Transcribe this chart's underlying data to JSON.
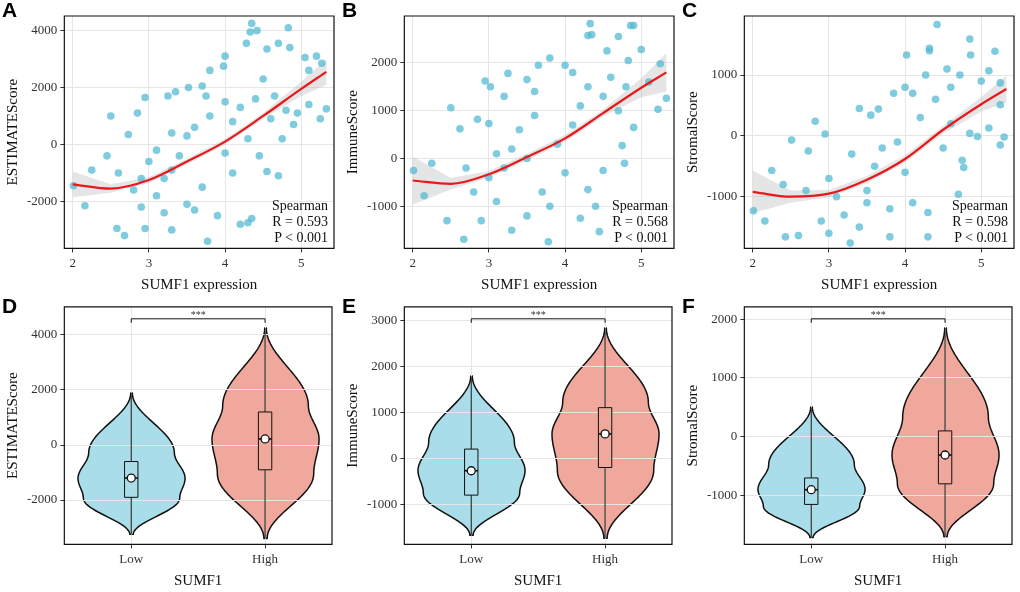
{
  "chart_data": [
    {
      "type": "scatter",
      "title": "A",
      "xlabel": "SUMF1 expression",
      "ylabel": "ESTIMATEScore",
      "xlim": [
        1.89,
        5.43
      ],
      "xticks": [
        2,
        3,
        4,
        5
      ],
      "ylim": [
        -3650,
        4510
      ],
      "yticks": [
        -2000,
        0,
        2000,
        4000
      ],
      "grid": true,
      "annotations": [
        "Spearman",
        "R = 0.593",
        "P < 0.001"
      ],
      "series": [
        {
          "type": "scatter",
          "marker": "circle",
          "color": "#4fb9d3",
          "x": [
            4.35,
            4.33,
            4.42,
            4.83,
            4.28,
            4.7,
            4.55,
            4.85,
            5.2,
            5.05,
            4.0,
            3.8,
            3.98,
            5.27,
            5.1,
            5.33,
            5.25,
            5.1,
            4.95,
            4.9,
            4.75,
            4.7,
            4.55,
            4.35,
            4.3,
            4.2,
            3.77,
            3.3,
            2.95,
            2.68,
            2.58,
            2.16,
            2.01,
            2.25,
            2.5,
            2.85,
            2.95,
            3.25,
            3.35,
            3.52,
            3.7,
            3.75,
            2.73,
            2.45,
            2.6,
            2.8,
            2.9,
            3.1,
            3.2,
            3.0,
            3.1,
            3.3,
            3.4,
            3.5,
            3.6,
            3.3,
            3.7,
            3.9,
            3.6,
            4.0,
            4.1,
            4.2,
            4.4,
            4.5,
            4.6,
            4.3,
            4.0,
            3.8,
            3.5,
            3.2,
            2.9,
            4.65,
            4.8,
            4.1,
            4.45
          ],
          "values": [
            4250,
            3950,
            4000,
            4100,
            3550,
            3550,
            3350,
            3400,
            3100,
            3050,
            3100,
            2600,
            2750,
            2850,
            2600,
            1250,
            900,
            1400,
            1100,
            700,
            200,
            -1100,
            -950,
            -2600,
            -2750,
            -2800,
            -3400,
            -3000,
            -2950,
            -3200,
            -2950,
            -2150,
            -1450,
            -900,
            1000,
            1100,
            1650,
            1700,
            1850,
            2000,
            2050,
            1700,
            350,
            -400,
            -1000,
            -1600,
            -2200,
            -1800,
            -1200,
            -600,
            -200,
            -900,
            -400,
            300,
            600,
            400,
            -1500,
            -2500,
            -2300,
            -300,
            800,
            1300,
            1600,
            2300,
            900,
            200,
            1500,
            1000,
            -2100,
            -2400,
            -1200,
            1700,
            1200,
            -1000,
            -400
          ]
        },
        {
          "type": "line",
          "color": "#e8191c",
          "x": [
            2.0,
            2.5,
            3.0,
            3.5,
            4.0,
            4.5,
            5.0,
            5.33
          ],
          "values": [
            -1400,
            -1550,
            -1250,
            -600,
            100,
            1000,
            1950,
            2550
          ],
          "lower": [
            -1850,
            -1700,
            -1350,
            -700,
            0,
            900,
            1700,
            2100
          ],
          "upper": [
            -950,
            -1400,
            -1150,
            -500,
            200,
            1100,
            2200,
            3000
          ]
        }
      ]
    },
    {
      "type": "scatter",
      "title": "B",
      "xlabel": "SUMF1 expression",
      "ylabel": "ImmuneScore",
      "xlim": [
        1.89,
        5.43
      ],
      "xticks": [
        2,
        3,
        4,
        5
      ],
      "ylim": [
        -1880,
        2980
      ],
      "yticks": [
        -1000,
        0,
        1000,
        2000
      ],
      "grid": true,
      "annotations": [
        "Spearman",
        "R = 0.568",
        "P < 0.001"
      ],
      "series": [
        {
          "type": "scatter",
          "marker": "circle",
          "color": "#4fb9d3",
          "x": [
            4.33,
            4.86,
            4.9,
            4.3,
            4.35,
            4.7,
            4.55,
            5.0,
            3.8,
            4.83,
            4.0,
            3.65,
            3.25,
            2.95,
            3.02,
            5.25,
            5.33,
            5.22,
            4.75,
            4.78,
            4.5,
            4.3,
            4.4,
            4.2,
            4.45,
            3.78,
            2.67,
            2.45,
            2.15,
            2.01,
            2.25,
            2.5,
            2.62,
            2.85,
            3.0,
            3.2,
            3.5,
            3.6,
            4.1,
            4.3,
            4.6,
            4.8,
            5.1,
            3.0,
            3.1,
            3.3,
            3.5,
            3.7,
            3.3,
            3.4,
            3.6,
            3.2,
            2.9,
            2.8,
            3.9,
            4.0,
            4.1,
            4.2,
            4.5,
            3.8,
            3.1,
            2.7,
            3.5,
            4.7,
            4.9
          ],
          "values": [
            2820,
            2780,
            2780,
            2570,
            2590,
            2550,
            2250,
            2280,
            2100,
            2050,
            1950,
            1950,
            1780,
            1620,
            1500,
            1980,
            1260,
            1030,
            270,
            -100,
            -250,
            -650,
            -1000,
            -1250,
            -1530,
            -1740,
            -1690,
            -1300,
            -780,
            -250,
            -100,
            1060,
            620,
            820,
            730,
            1300,
            1650,
            1400,
            1800,
            1500,
            1700,
            1500,
            1600,
            -400,
            -900,
            -1500,
            -1200,
            -700,
            200,
            600,
            900,
            -200,
            -1300,
            -700,
            300,
            -300,
            700,
            1100,
            1300,
            -1000,
            100,
            -200,
            0,
            1000,
            650
          ]
        },
        {
          "type": "line",
          "color": "#e8191c",
          "x": [
            2.0,
            2.5,
            3.0,
            3.5,
            4.0,
            4.5,
            5.0,
            5.33
          ],
          "values": [
            -460,
            -530,
            -330,
            30,
            420,
            950,
            1480,
            1800
          ],
          "lower": [
            -960,
            -650,
            -400,
            -40,
            350,
            880,
            1280,
            1400
          ],
          "upper": [
            40,
            -410,
            -260,
            100,
            490,
            1020,
            1680,
            2200
          ]
        }
      ]
    },
    {
      "type": "scatter",
      "title": "C",
      "xlabel": "SUMF1 expression",
      "ylabel": "StromalScore",
      "xlim": [
        1.89,
        5.43
      ],
      "xticks": [
        2,
        3,
        4,
        5
      ],
      "ylim": [
        -1850,
        1970
      ],
      "yticks": [
        -1000,
        0,
        1000
      ],
      "grid": true,
      "annotations": [
        "Spearman",
        "R = 0.598",
        "P < 0.001"
      ],
      "series": [
        {
          "type": "scatter",
          "marker": "circle",
          "color": "#4fb9d3",
          "x": [
            4.42,
            4.85,
            4.32,
            4.32,
            5.18,
            4.02,
            4.86,
            5.1,
            4.55,
            4.27,
            4.72,
            5.3,
            5.25,
            5.1,
            4.85,
            4.95,
            4.75,
            4.77,
            4.7,
            4.3,
            4.3,
            3.8,
            3.28,
            2.43,
            2.6,
            2.01,
            2.16,
            2.25,
            2.51,
            2.73,
            2.82,
            2.95,
            3.4,
            3.55,
            3.65,
            3.85,
            4.0,
            4.1,
            4.4,
            4.6,
            5.0,
            5.25,
            5.25,
            3.0,
            3.1,
            3.2,
            3.5,
            3.6,
            3.3,
            3.7,
            3.9,
            4.0,
            4.1,
            3.4,
            2.9,
            2.7,
            2.4,
            3.0,
            4.5,
            4.2,
            3.8,
            3.5,
            4.6
          ],
          "values": [
            1830,
            1590,
            1440,
            1400,
            1390,
            1330,
            1330,
            1070,
            1100,
            1000,
            1000,
            -20,
            -150,
            130,
            40,
            -10,
            -400,
            -520,
            -960,
            -1260,
            -1660,
            -1660,
            -1760,
            -1660,
            -1640,
            -1230,
            -1400,
            -570,
            -70,
            -250,
            240,
            30,
            450,
            340,
            440,
            700,
            800,
            700,
            600,
            800,
            900,
            870,
            510,
            -700,
            -1000,
            -1300,
            -900,
            -500,
            -300,
            -200,
            -100,
            -600,
            -1100,
            -1500,
            -1400,
            -900,
            -800,
            -1600,
            -200,
            300,
            -1200,
            -1100,
            200
          ]
        },
        {
          "type": "line",
          "color": "#e8191c",
          "x": [
            2.0,
            2.5,
            3.0,
            3.5,
            4.0,
            4.5,
            5.0,
            5.33
          ],
          "values": [
            -920,
            -1000,
            -950,
            -720,
            -380,
            100,
            520,
            770
          ],
          "lower": [
            -1270,
            -1100,
            -1010,
            -780,
            -440,
            40,
            400,
            550
          ],
          "upper": [
            -570,
            -900,
            -890,
            -660,
            -320,
            160,
            640,
            990
          ]
        }
      ]
    },
    {
      "type": "box",
      "title": "D",
      "xlabel": "SUMF1",
      "ylabel": "ESTIMATEScore",
      "categories": [
        "Low",
        "High"
      ],
      "colors": [
        "#a8dde9",
        "#f0a79c"
      ],
      "ylim": [
        -3610,
        5020
      ],
      "yticks": [
        -2000,
        0,
        2000,
        4000
      ],
      "grid": true,
      "annotations": [
        "***"
      ],
      "boxes": [
        {
          "low": -3250,
          "q1": -1900,
          "median": -1200,
          "q3": -600,
          "high": 1900,
          "mean": -1200
        },
        {
          "low": -3400,
          "q1": -900,
          "median": 220,
          "q3": 1200,
          "high": 4250,
          "mean": 220
        }
      ]
    },
    {
      "type": "box",
      "title": "E",
      "xlabel": "SUMF1",
      "ylabel": "ImmuneScore",
      "categories": [
        "Low",
        "High"
      ],
      "colors": [
        "#a8dde9",
        "#f0a79c"
      ],
      "ylim": [
        -1870,
        3290
      ],
      "yticks": [
        -1000,
        0,
        1000,
        2000,
        3000
      ],
      "grid": true,
      "annotations": [
        "***"
      ],
      "boxes": [
        {
          "low": -1680,
          "q1": -800,
          "median": -270,
          "q3": 200,
          "high": 1780,
          "mean": -270
        },
        {
          "low": -1740,
          "q1": -200,
          "median": 530,
          "q3": 1100,
          "high": 2830,
          "mean": 530
        }
      ]
    },
    {
      "type": "box",
      "title": "F",
      "xlabel": "SUMF1",
      "ylabel": "StromalScore",
      "categories": [
        "Low",
        "High"
      ],
      "colors": [
        "#a8dde9",
        "#f0a79c"
      ],
      "ylim": [
        -1830,
        2210
      ],
      "yticks": [
        -1000,
        0,
        1000,
        2000
      ],
      "grid": true,
      "annotations": [
        "***"
      ],
      "boxes": [
        {
          "low": -1720,
          "q1": -1150,
          "median": -900,
          "q3": -700,
          "high": 500,
          "mean": -900
        },
        {
          "low": -1700,
          "q1": -800,
          "median": -310,
          "q3": 100,
          "high": 1850,
          "mean": -310
        }
      ]
    }
  ]
}
